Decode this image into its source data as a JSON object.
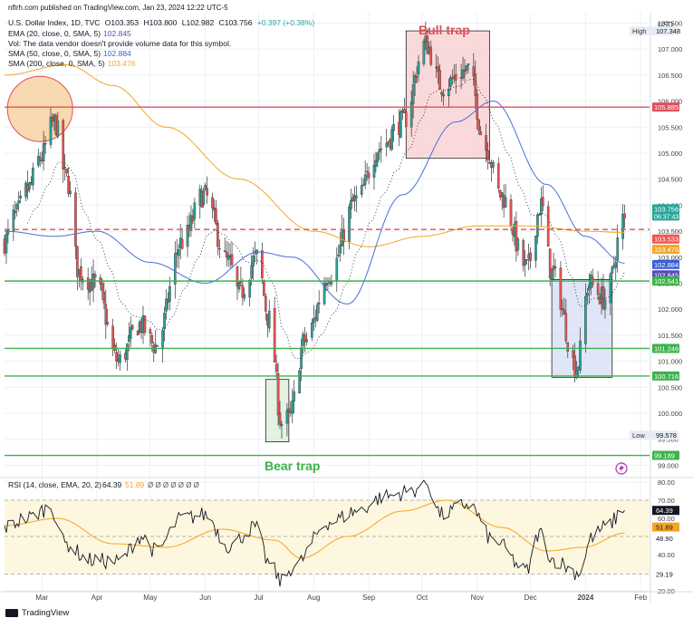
{
  "header": {
    "published": "nftrh.com published on TradingView.com, Jan 23, 2024 12:22 UTC-5",
    "symbol_line": {
      "name": "U.S. Dollar Index, 1D, TVC",
      "open": "O103.353",
      "high": "H103.800",
      "low": "L102.982",
      "close": "C103.756",
      "change": "+0.397 (+0.38%)"
    },
    "indicators": [
      {
        "label": "EMA (20, close, 0, SMA, 5)",
        "value": "102.845",
        "color": "#5b4db8"
      },
      {
        "label": "Vol: The data vendor doesn't provide volume data for this symbol.",
        "value": "",
        "color": "#131722"
      },
      {
        "label": "SMA (50, close, 0, SMA, 5)",
        "value": "102.884",
        "color": "#3a5fd6"
      },
      {
        "label": "SMA (200, close, 0, SMA, 5)",
        "value": "103.476",
        "color": "#f5a524"
      }
    ]
  },
  "footer": {
    "brand": "TradingView"
  },
  "colors": {
    "up": "#26a69a",
    "down": "#ef5350",
    "sma50": "#4a6fd9",
    "sma200": "#f5a524",
    "ema20": "#131722",
    "resistance": "#e0505a",
    "support": "#3bb34b",
    "bull_box": "#f8c9cc",
    "bear_box": "#d9ecd6",
    "blue_box": "#d3dcf4",
    "rsi": "#131722",
    "rsi_ema": "#f5a524",
    "rsi_band": "#fdf7df"
  },
  "chart_data": [
    {
      "type": "candlestick",
      "title": "U.S. Dollar Index, 1D, TVC",
      "ylabel": "USD",
      "ylim": [
        98.85,
        107.7
      ],
      "y_ticks": [
        99.0,
        99.5,
        100.0,
        100.5,
        101.0,
        101.5,
        102.0,
        102.5,
        103.0,
        103.5,
        104.0,
        104.5,
        105.0,
        105.5,
        106.0,
        106.5,
        107.0,
        107.5
      ],
      "x_ticks": [
        "Mar",
        "Apr",
        "May",
        "Jun",
        "Jul",
        "Aug",
        "Sep",
        "Oct",
        "Nov",
        "Dec",
        "2024",
        "Feb"
      ],
      "x_tick_dates": [
        "2023-03-01",
        "2023-04-01",
        "2023-05-01",
        "2023-06-01",
        "2023-07-01",
        "2023-08-01",
        "2023-09-01",
        "2023-10-01",
        "2023-11-01",
        "2023-12-01",
        "2024-01-01",
        "2024-02-01"
      ],
      "series_knots": {
        "dates": [
          "2023-02-08",
          "2023-02-14",
          "2023-02-21",
          "2023-02-28",
          "2023-03-08",
          "2023-03-15",
          "2023-03-22",
          "2023-03-31",
          "2023-04-13",
          "2023-04-25",
          "2023-05-04",
          "2023-05-19",
          "2023-05-31",
          "2023-06-14",
          "2023-06-20",
          "2023-06-30",
          "2023-07-07",
          "2023-07-14",
          "2023-07-18",
          "2023-07-27",
          "2023-08-10",
          "2023-08-25",
          "2023-09-07",
          "2023-09-20",
          "2023-10-03",
          "2023-10-12",
          "2023-10-27",
          "2023-11-06",
          "2023-11-14",
          "2023-11-29",
          "2023-12-07",
          "2023-12-13",
          "2023-12-27",
          "2024-01-03",
          "2024-01-12",
          "2024-01-23"
        ],
        "close": [
          103.3,
          103.8,
          104.3,
          104.9,
          105.6,
          104.5,
          102.7,
          102.5,
          101.0,
          101.7,
          101.3,
          103.3,
          104.2,
          102.9,
          102.3,
          103.0,
          101.8,
          99.8,
          99.9,
          101.4,
          102.7,
          104.1,
          105.1,
          105.6,
          107.1,
          106.3,
          106.6,
          105.1,
          104.2,
          102.8,
          104.0,
          102.7,
          100.9,
          102.5,
          102.2,
          103.756
        ]
      },
      "sma50_knots": {
        "dates": [
          "2023-02-08",
          "2023-03-08",
          "2023-04-01",
          "2023-05-01",
          "2023-06-01",
          "2023-07-01",
          "2023-07-20",
          "2023-08-20",
          "2023-09-20",
          "2023-10-20",
          "2023-11-10",
          "2023-12-10",
          "2024-01-01",
          "2024-01-23"
        ],
        "values": [
          103.5,
          103.4,
          103.5,
          102.9,
          102.5,
          103.1,
          103.0,
          102.1,
          104.2,
          105.6,
          106.0,
          104.4,
          103.4,
          102.884
        ]
      },
      "sma200_knots": {
        "dates": [
          "2023-02-08",
          "2023-03-15",
          "2023-04-10",
          "2023-05-10",
          "2023-06-20",
          "2023-08-01",
          "2023-09-01",
          "2023-10-01",
          "2023-11-01",
          "2023-12-01",
          "2024-01-01",
          "2024-01-23"
        ],
        "values": [
          106.5,
          106.7,
          106.3,
          105.5,
          104.5,
          103.5,
          103.2,
          103.4,
          103.6,
          103.6,
          103.5,
          103.476
        ]
      },
      "price_labels": [
        {
          "text": "High",
          "value": "107.348"
        },
        {
          "text": "Low",
          "value": "99.578"
        }
      ],
      "axis_labels": [
        {
          "value": "105.885",
          "color": "#e0505a"
        },
        {
          "value": "103.756",
          "color": "#26a69a",
          "sub": "06:37:43"
        },
        {
          "value": "103.533",
          "color": "#ef5350"
        },
        {
          "value": "103.476",
          "color": "#f5a524"
        },
        {
          "value": "102.884",
          "color": "#3a5fd6"
        },
        {
          "value": "102.845",
          "color": "#5b4db8"
        },
        {
          "value": "102.541",
          "color": "#3bb34b"
        },
        {
          "value": "101.246",
          "color": "#3bb34b"
        },
        {
          "value": "100.716",
          "color": "#3bb34b"
        },
        {
          "value": "99.189",
          "color": "#3bb34b"
        }
      ],
      "horizontal_levels": [
        {
          "value": 105.885,
          "color": "#e0505a",
          "style": "solid"
        },
        {
          "value": 103.533,
          "color": "#e0505a",
          "style": "dashed"
        },
        {
          "value": 102.541,
          "color": "#3bb34b",
          "style": "solid"
        },
        {
          "value": 101.246,
          "color": "#3bb34b",
          "style": "solid"
        },
        {
          "value": 100.716,
          "color": "#3bb34b",
          "style": "solid"
        },
        {
          "value": 99.189,
          "color": "#3bb34b",
          "style": "solid"
        }
      ],
      "annotations": [
        {
          "text": "Bull trap",
          "color": "#e0505a"
        },
        {
          "text": "Bear trap",
          "color": "#3bb34b"
        }
      ],
      "boxes": [
        {
          "name": "bull-trap-box",
          "x0": "2023-09-22",
          "x1": "2023-11-08",
          "y0": 104.9,
          "y1": 107.35
        },
        {
          "name": "bear-trap-box",
          "x0": "2023-07-05",
          "x1": "2023-07-18",
          "y0": 99.45,
          "y1": 100.65
        },
        {
          "name": "support-box",
          "x0": "2023-12-13",
          "x1": "2024-01-16",
          "y0": 100.69,
          "y1": 102.57
        }
      ],
      "circle": {
        "date": "2023-02-28",
        "value": 105.85
      }
    },
    {
      "type": "line",
      "title": "RSI (14, close, EMA, 20, 2)",
      "value": "64.39",
      "ema_value": "51.89",
      "ylim": [
        20,
        82
      ],
      "y_ticks": [
        20.0,
        30.0,
        40.0,
        50.0,
        60.0,
        70.0,
        80.0
      ],
      "band": [
        29.19,
        70.0
      ],
      "axis_labels": [
        {
          "value": "64.39",
          "color": "#131722"
        },
        {
          "value": "51.89",
          "color": "#f5a524"
        },
        {
          "value": "48.90",
          "color": "#ffffff"
        },
        {
          "value": "29.19",
          "color": "#ffffff"
        }
      ],
      "series": [
        {
          "name": "RSI",
          "knots": {
            "dates": [
              "2023-02-08",
              "2023-02-20",
              "2023-03-06",
              "2023-03-14",
              "2023-03-28",
              "2023-04-13",
              "2023-04-26",
              "2023-05-04",
              "2023-05-19",
              "2023-06-01",
              "2023-06-14",
              "2023-06-29",
              "2023-07-07",
              "2023-07-14",
              "2023-07-20",
              "2023-08-10",
              "2023-08-25",
              "2023-09-10",
              "2023-09-25",
              "2023-10-03",
              "2023-10-12",
              "2023-10-27",
              "2023-11-10",
              "2023-11-29",
              "2023-12-06",
              "2023-12-14",
              "2023-12-28",
              "2024-01-05",
              "2024-01-12",
              "2024-01-23"
            ],
            "values": [
              55,
              60,
              66,
              46,
              37,
              36,
              50,
              42,
              60,
              62,
              45,
              55,
              35,
              25,
              33,
              58,
              64,
              72,
              75,
              80,
              62,
              68,
              48,
              31,
              52,
              37,
              30,
              50,
              55,
              64.39
            ]
          }
        },
        {
          "name": "RSI EMA",
          "knots": {
            "dates": [
              "2023-02-08",
              "2023-03-10",
              "2023-04-10",
              "2023-05-10",
              "2023-06-10",
              "2023-07-10",
              "2023-07-25",
              "2023-08-20",
              "2023-09-20",
              "2023-10-15",
              "2023-11-15",
              "2023-12-10",
              "2023-12-31",
              "2024-01-23"
            ],
            "values": [
              56,
              60,
              46,
              44,
              54,
              48,
              38,
              50,
              64,
              70,
              55,
              42,
              44,
              51.89
            ]
          }
        }
      ]
    }
  ]
}
